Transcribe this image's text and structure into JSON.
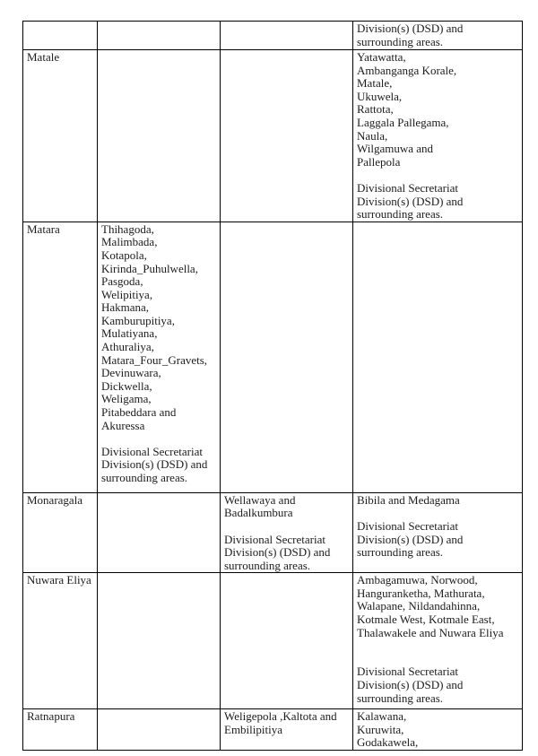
{
  "document": {
    "background_color": "#ffffff",
    "text_color": "#1c1c1c",
    "border_color": "#000000"
  },
  "table": {
    "rows": [
      {
        "cells": [
          "",
          "",
          "",
          "Division(s) (DSD) and\nsurrounding areas."
        ]
      },
      {
        "cells": [
          "Matale",
          "",
          "",
          "Yatawatta,\nAmbanganga Korale,\nMatale,\nUkuwela,\nRattota,\nLaggala Pallegama,\nNaula,\nWilgamuwa and\nPallepola\n\nDivisional Secretariat\nDivision(s) (DSD) and\nsurrounding areas."
        ]
      },
      {
        "cells": [
          "Matara",
          "Thihagoda,\nMalimbada,\nKotapola,\nKirinda_Puhulwella,\nPasgoda,\nWelipitiya,\nHakmana,\nKamburupitiya,\nMulatiyana,\nAthuraliya,\nMatara_Four_Gravets,\nDevinuwara,\nDickwella,\nWeligama,\nPitabeddara and\nAkuressa\n\nDivisional Secretariat\nDivision(s) (DSD) and\nsurrounding areas.",
          "",
          ""
        ]
      },
      {
        "cells": [
          "Monaragala",
          "",
          "Wellawaya and\nBadalkumbura\n\nDivisional Secretariat\nDivision(s) (DSD) and\nsurrounding areas.",
          "Bibila and Medagama\n\nDivisional Secretariat\nDivision(s) (DSD) and\nsurrounding areas."
        ]
      },
      {
        "cells": [
          "Nuwara Eliya",
          "",
          "",
          "Ambagamuwa, Norwood,\nHanguranketha, Mathurata,\nWalapane, Nildandahinna,\nKotmale West, Kotmale East,\nThalawakele and Nuwara Eliya\n\n\nDivisional Secretariat\nDivision(s) (DSD) and\nsurrounding areas."
        ]
      },
      {
        "cells": [
          "Ratnapura",
          "",
          "Weligepola ,Kaltota and\nEmbilipitiya",
          "Kalawana,\nKuruwita,\nGodakawela,"
        ]
      }
    ]
  }
}
